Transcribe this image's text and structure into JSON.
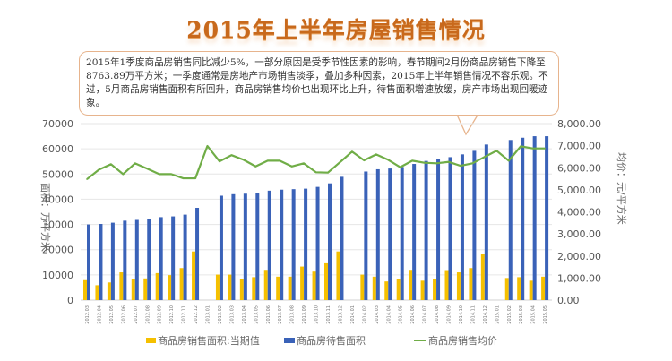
{
  "title": "2015年上半年房屋销售情况",
  "callout_text": "2015年1季度商品房销售同比减少5%，一部分原因是受季节性因素的影响，春节期间2月份商品房销售下降至8763.89万平方米；一季度通常是房地产市场销售淡季，叠加多种因素，2015年上半年销售情况不容乐观。不过，5月商品房销售面积有所回升，商品房销售均价也出现环比上升，待售面积增速放缓，房产市场出现回暖迹象。",
  "chart_data": {
    "type": "bar+line",
    "title": "2015年上半年房屋销售情况",
    "ylabel_left": "面积：万平方米",
    "ylabel_right": "均价：元/平方米",
    "ylim_left": [
      0,
      70000
    ],
    "ylim_right": [
      0,
      8000
    ],
    "yticks_left": [
      "0",
      "10000",
      "20000",
      "30000",
      "40000",
      "50000",
      "60000",
      "70000"
    ],
    "yticks_right": [
      "0.00",
      "1,000.00",
      "2,000.00",
      "3,000.00",
      "4,000.00",
      "5,000.00",
      "6,000.00",
      "7,000.00",
      "8,000.00"
    ],
    "grid": true,
    "legend_position": "bottom",
    "categories": [
      "2012.03",
      "2012.04",
      "2012.05",
      "2012.06",
      "2012.07",
      "2012.08",
      "2012.09",
      "2012.10",
      "2012.11",
      "2012.12",
      "2013.01",
      "2013.02",
      "2013.03",
      "2013.04",
      "2013.05",
      "2013.06",
      "2013.07",
      "2013.08",
      "2013.09",
      "2013.10",
      "2013.11",
      "2013.12",
      "2014.01",
      "2014.02",
      "2014.03",
      "2014.04",
      "2014.05",
      "2014.06",
      "2014.07",
      "2014.08",
      "2014.09",
      "2014.10",
      "2014.11",
      "2014.12",
      "2015.01",
      "2015.02",
      "2015.03",
      "2015.04",
      "2015.05"
    ],
    "series": [
      {
        "name": "商品房销售面积:当期值",
        "type": "bar",
        "axis": "left",
        "color": "#f5c000",
        "values": [
          7900,
          5900,
          7000,
          11000,
          8400,
          8600,
          10700,
          9900,
          12700,
          19300,
          null,
          10100,
          10100,
          8500,
          9100,
          12000,
          9300,
          9300,
          13300,
          11300,
          14600,
          19300,
          null,
          10100,
          9300,
          7400,
          8200,
          12000,
          7700,
          8200,
          11900,
          11000,
          12700,
          18400,
          null,
          8764,
          9100,
          7700,
          9300
        ]
      },
      {
        "name": "商品房待售面积",
        "type": "bar",
        "axis": "left",
        "color": "#3a62b8",
        "values": [
          30000,
          30200,
          30700,
          31500,
          31800,
          32300,
          32900,
          33200,
          33900,
          36600,
          null,
          41400,
          42000,
          42200,
          42600,
          43400,
          43800,
          44000,
          44200,
          44900,
          46300,
          48900,
          null,
          51000,
          51900,
          52200,
          52800,
          54000,
          55200,
          55800,
          56700,
          57800,
          59200,
          61700,
          null,
          63500,
          64400,
          65000,
          65000
        ]
      },
      {
        "name": "商品房销售均价",
        "type": "line",
        "axis": "right",
        "color": "#70ad47",
        "values": [
          5480,
          5915,
          6160,
          5710,
          6200,
          5960,
          5710,
          5710,
          5520,
          5520,
          6985,
          6290,
          6570,
          6360,
          6060,
          6320,
          6320,
          6060,
          6200,
          5795,
          5780,
          6250,
          6730,
          6335,
          6605,
          6360,
          6025,
          6320,
          6225,
          6200,
          6265,
          6090,
          6200,
          6490,
          6770,
          6320,
          6970,
          6875,
          6875
        ]
      }
    ]
  }
}
